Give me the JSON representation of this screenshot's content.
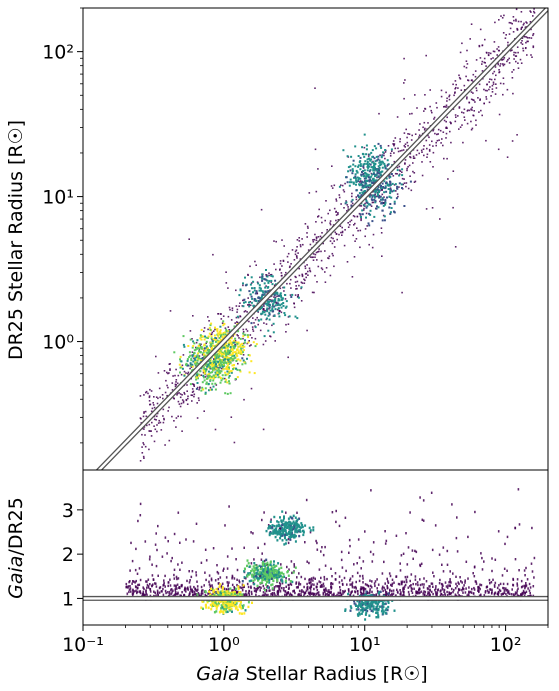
{
  "chart_data": [
    {
      "type": "heatmap",
      "panel": "top",
      "xscale": "log",
      "yscale": "log",
      "xlim": [
        0.1,
        200
      ],
      "ylim": [
        0.13,
        200
      ],
      "ylabel": "DR25 Stellar Radius [R☉]",
      "yticks": [
        1,
        10,
        100
      ],
      "ytick_labels": [
        "10⁰",
        "10¹",
        "10²"
      ],
      "colormap": [
        "#440154",
        "#3b528b",
        "#21918c",
        "#5ec962",
        "#fde725"
      ],
      "reference_line": "y = x",
      "density_peaks": [
        {
          "x": 1.0,
          "y": 0.9,
          "density": 1.0
        },
        {
          "x": 0.75,
          "y": 0.72,
          "density": 0.85
        },
        {
          "x": 2.0,
          "y": 2.0,
          "density": 0.55
        },
        {
          "x": 11.0,
          "y": 15.0,
          "density": 0.6
        },
        {
          "x": 12.0,
          "y": 11.0,
          "density": 0.45
        }
      ]
    },
    {
      "type": "heatmap",
      "panel": "bottom",
      "xscale": "log",
      "xlim": [
        0.1,
        200
      ],
      "ylim": [
        0.4,
        3.9
      ],
      "xlabel_italic": "Gaia",
      "xlabel_rest": " Stellar Radius [R☉]",
      "ylabel_italic": "Gaia",
      "ylabel_rest": "/DR25",
      "xticks": [
        0.1,
        1,
        10,
        100
      ],
      "xtick_labels": [
        "10⁻¹",
        "10⁰",
        "10¹",
        "10²"
      ],
      "yticks": [
        1,
        2,
        3
      ],
      "ytick_labels": [
        "1",
        "2",
        "3"
      ],
      "reference_line": "y = 1",
      "density_peaks": [
        {
          "x": 1.0,
          "y": 1.0,
          "density": 1.0
        },
        {
          "x": 2.0,
          "y": 1.6,
          "density": 0.75
        },
        {
          "x": 2.8,
          "y": 2.6,
          "density": 0.6
        },
        {
          "x": 11.0,
          "y": 0.9,
          "density": 0.55
        }
      ]
    }
  ]
}
